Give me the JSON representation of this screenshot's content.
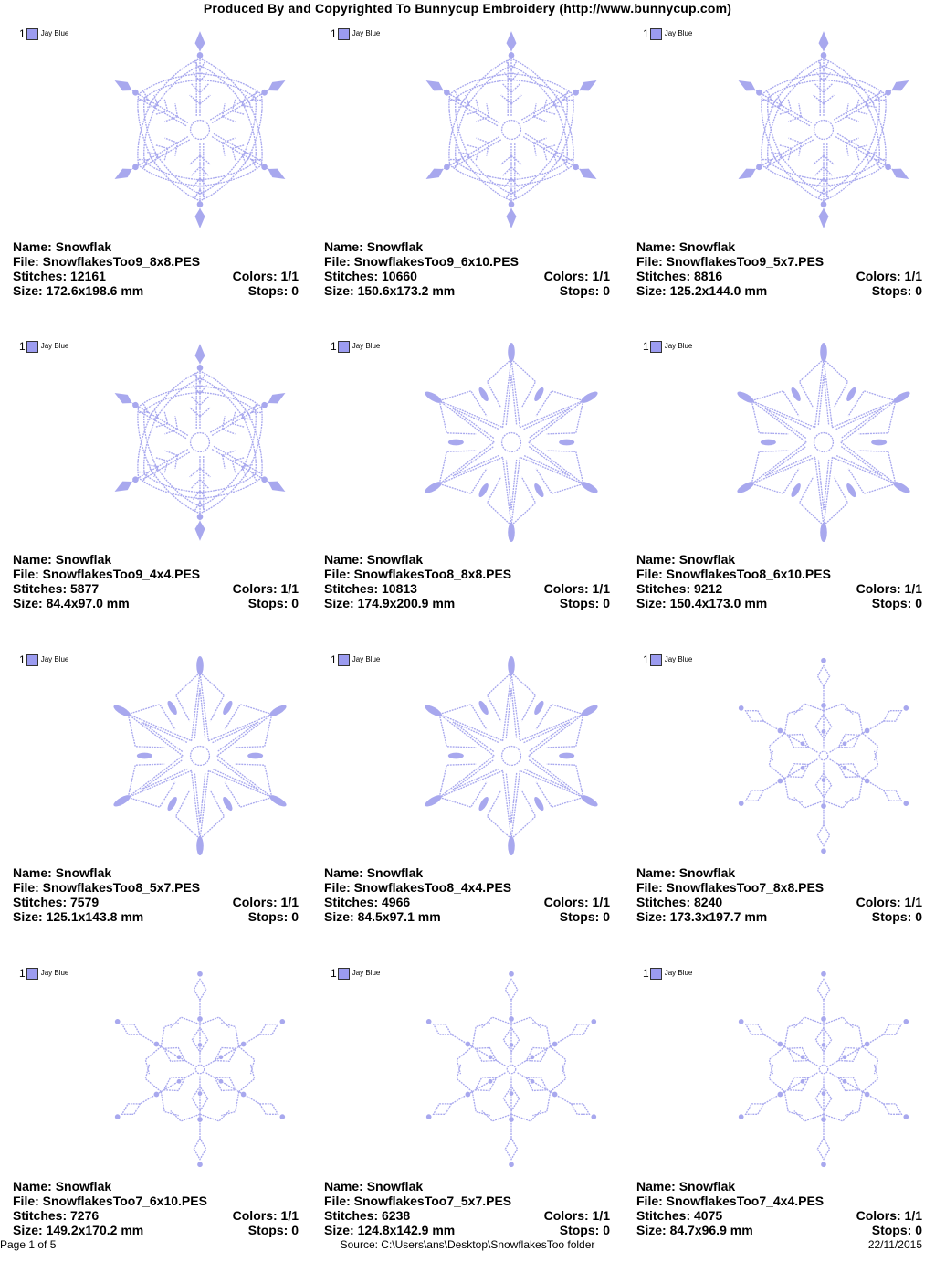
{
  "header": "Produced By and Copyrighted To Bunnycup Embroidery (http://www.bunnycup.com)",
  "labels": {
    "name": "Name: ",
    "file": "File: ",
    "stitches": "Stitches: ",
    "size": "Size: ",
    "colors": "Colors: ",
    "stops": "Stops: "
  },
  "thread": {
    "number": "1",
    "name": "Jay Blue",
    "color": "#9c9cf0"
  },
  "stitch_color": "#a8a8ee",
  "designs": [
    {
      "name": "Snowflak",
      "file": "SnowflakesToo9_8x8.PES",
      "stitches": "12161",
      "colors": "1/1",
      "size": "172.6x198.6 mm",
      "stops": "0",
      "style": "fern"
    },
    {
      "name": "Snowflak",
      "file": "SnowflakesToo9_6x10.PES",
      "stitches": "10660",
      "colors": "1/1",
      "size": "150.6x173.2 mm",
      "stops": "0",
      "style": "fern"
    },
    {
      "name": "Snowflak",
      "file": "SnowflakesToo9_5x7.PES",
      "stitches": "8816",
      "colors": "1/1",
      "size": "125.2x144.0 mm",
      "stops": "0",
      "style": "fern"
    },
    {
      "name": "Snowflak",
      "file": "SnowflakesToo9_4x4.PES",
      "stitches": "5877",
      "colors": "1/1",
      "size": "84.4x97.0 mm",
      "stops": "0",
      "style": "fern"
    },
    {
      "name": "Snowflak",
      "file": "SnowflakesToo8_8x8.PES",
      "stitches": "10813",
      "colors": "1/1",
      "size": "174.9x200.9 mm",
      "stops": "0",
      "style": "star"
    },
    {
      "name": "Snowflak",
      "file": "SnowflakesToo8_6x10.PES",
      "stitches": "9212",
      "colors": "1/1",
      "size": "150.4x173.0 mm",
      "stops": "0",
      "style": "star"
    },
    {
      "name": "Snowflak",
      "file": "SnowflakesToo8_5x7.PES",
      "stitches": "7579",
      "colors": "1/1",
      "size": "125.1x143.8 mm",
      "stops": "0",
      "style": "star"
    },
    {
      "name": "Snowflak",
      "file": "SnowflakesToo8_4x4.PES",
      "stitches": "4966",
      "colors": "1/1",
      "size": "84.5x97.1 mm",
      "stops": "0",
      "style": "star"
    },
    {
      "name": "Snowflak",
      "file": "SnowflakesToo7_8x8.PES",
      "stitches": "8240",
      "colors": "1/1",
      "size": "173.3x197.7 mm",
      "stops": "0",
      "style": "diamond"
    },
    {
      "name": "Snowflak",
      "file": "SnowflakesToo7_6x10.PES",
      "stitches": "7276",
      "colors": "1/1",
      "size": "149.2x170.2 mm",
      "stops": "0",
      "style": "diamond"
    },
    {
      "name": "Snowflak",
      "file": "SnowflakesToo7_5x7.PES",
      "stitches": "6238",
      "colors": "1/1",
      "size": "124.8x142.9 mm",
      "stops": "0",
      "style": "diamond"
    },
    {
      "name": "Snowflak",
      "file": "SnowflakesToo7_4x4.PES",
      "stitches": "4075",
      "colors": "1/1",
      "size": "84.7x96.9 mm",
      "stops": "0",
      "style": "diamond"
    }
  ],
  "footer": {
    "page": "Page 1 of 5",
    "source": "Source: C:\\Users\\ans\\Desktop\\SnowflakesToo folder",
    "date": "22/11/2015"
  }
}
